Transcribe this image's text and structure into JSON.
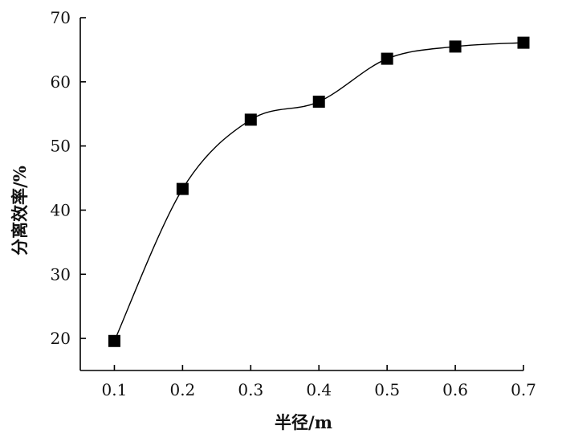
{
  "chart_data": {
    "type": "line",
    "title": "",
    "xlabel": "半径/m",
    "ylabel": "分离效率/%",
    "x": [
      0.1,
      0.2,
      0.3,
      0.4,
      0.5,
      0.6,
      0.7
    ],
    "x_tick_labels": [
      "0.1",
      "0.2",
      "0.3",
      "0.4",
      "0.5",
      "0.6",
      "0.7"
    ],
    "y_tick_labels": [
      "20",
      "30",
      "40",
      "50",
      "60",
      "70"
    ],
    "xlim": [
      0.05,
      0.7
    ],
    "ylim": [
      15,
      70
    ],
    "series": [
      {
        "values": [
          19.6,
          43.3,
          54.1,
          56.9,
          63.6,
          65.5,
          66.1
        ]
      }
    ],
    "marker": "square",
    "line_style": "smooth",
    "grid": false,
    "legend": "none",
    "colors": {
      "line": "#000000",
      "marker": "#000000",
      "axis": "#000000"
    }
  }
}
